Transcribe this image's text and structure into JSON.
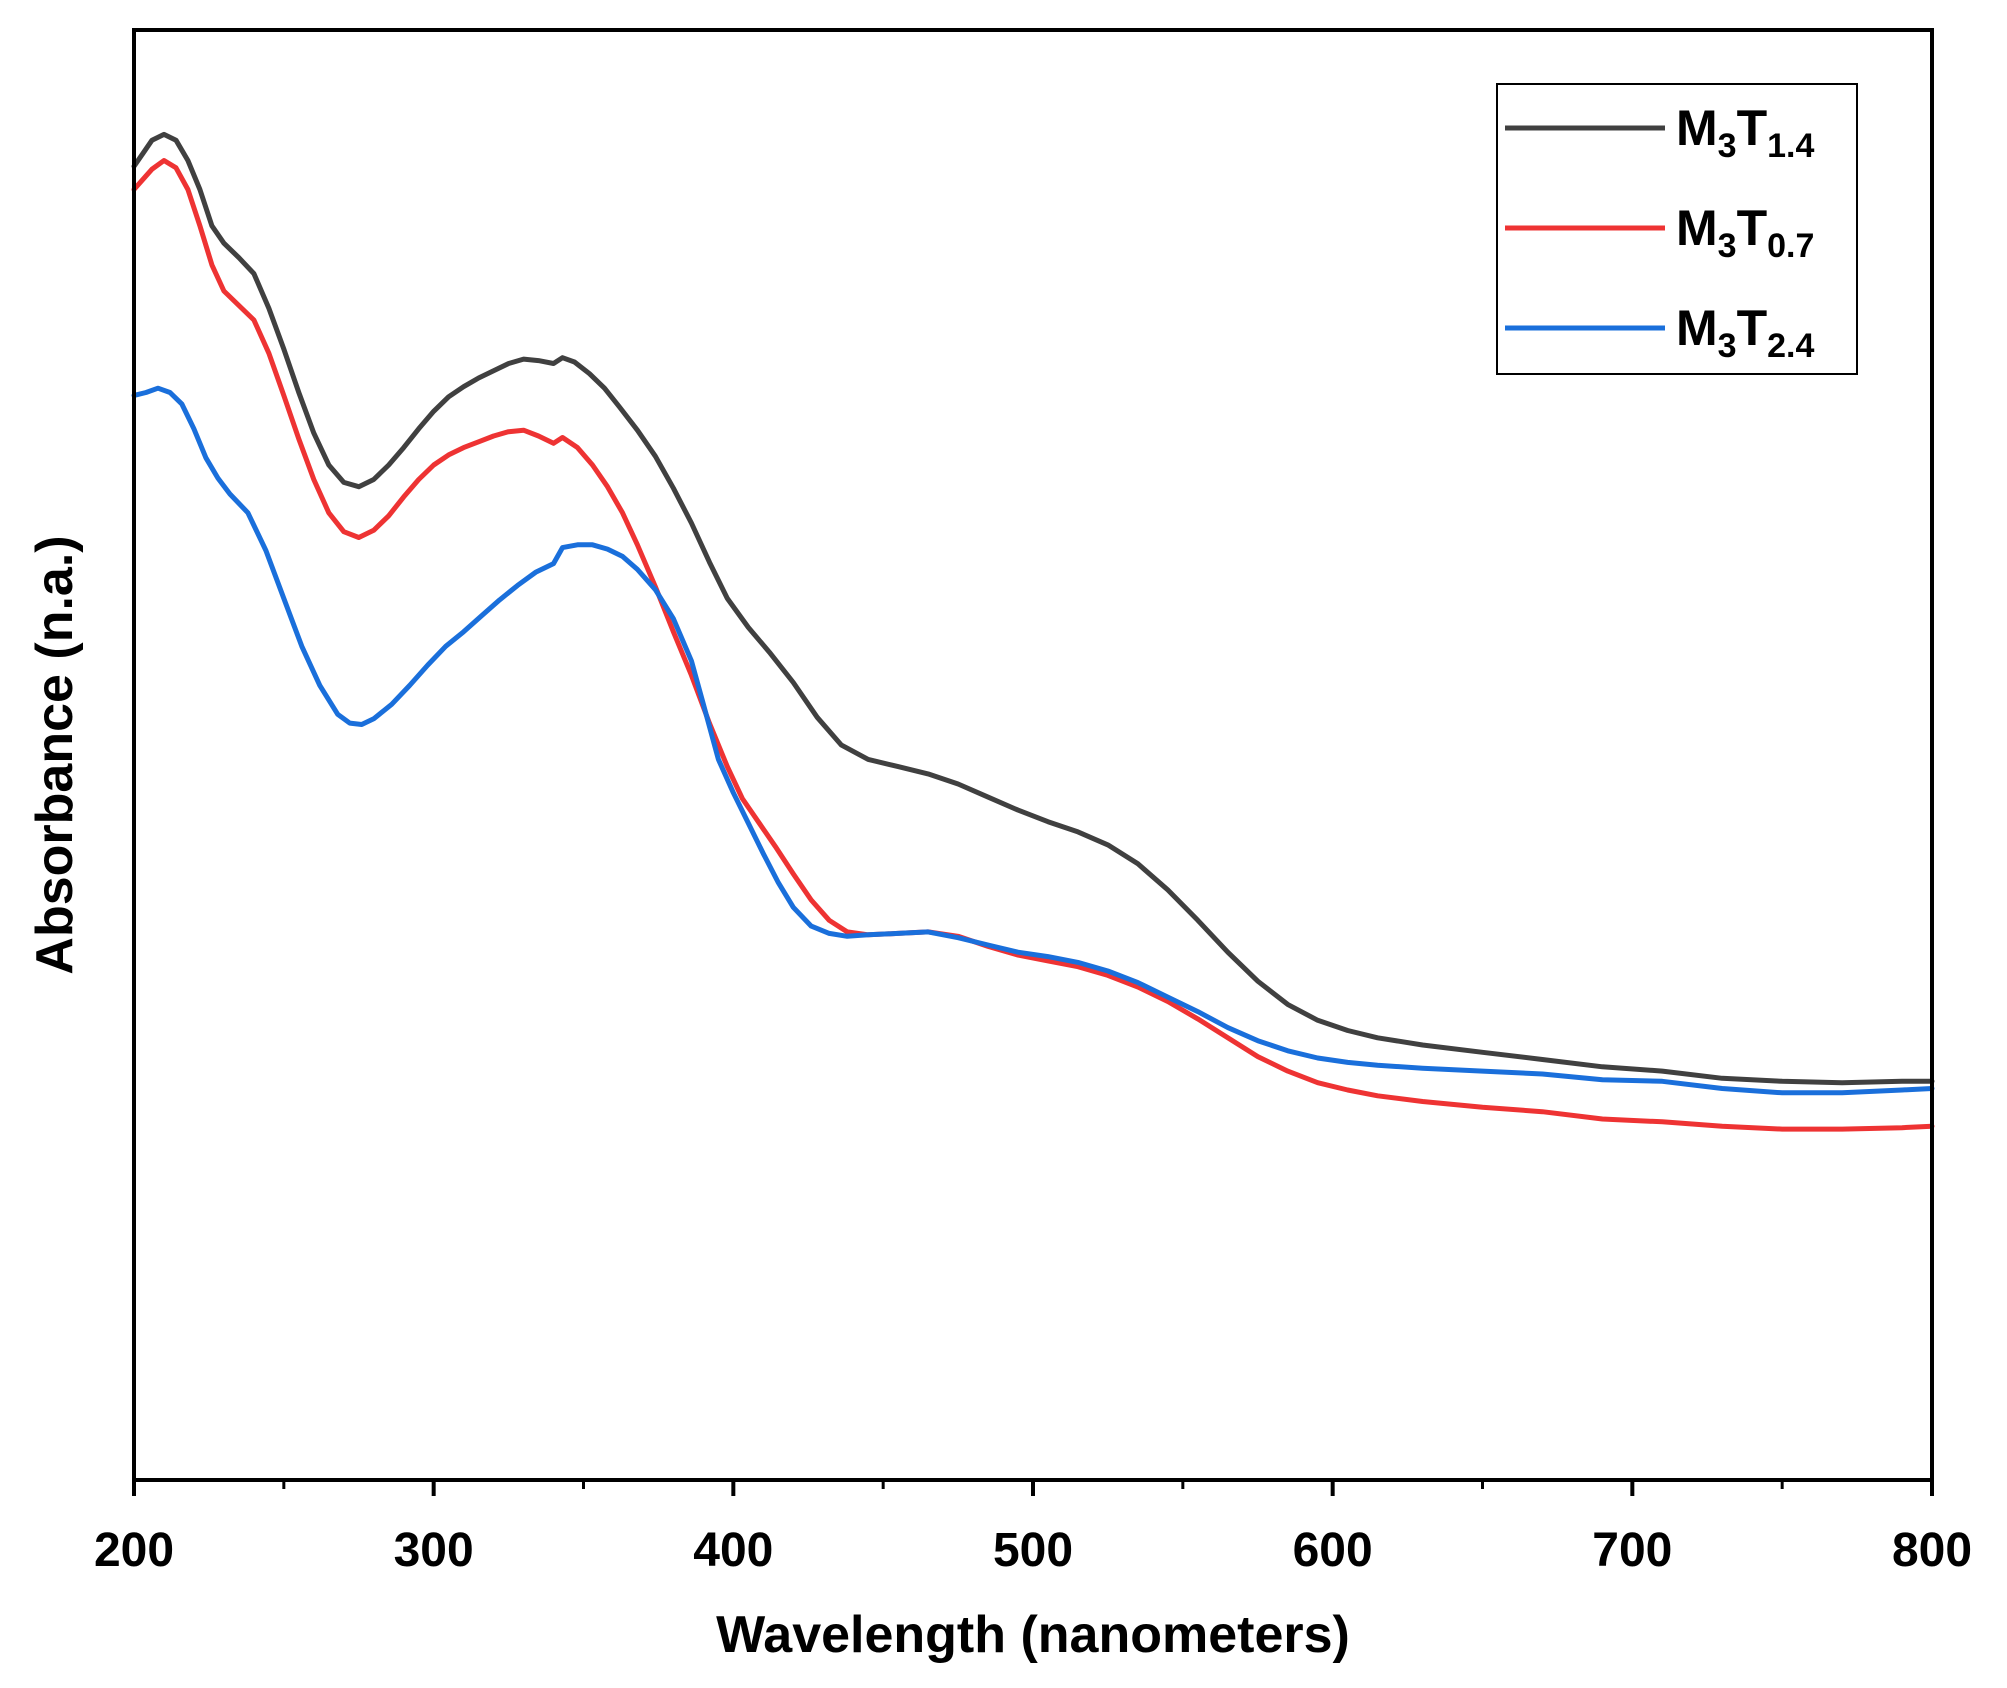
{
  "chart_data": {
    "type": "line",
    "title": "",
    "xlabel": "Wavelength (nanometers)",
    "ylabel": "Absorbance (n.a.)",
    "xlim": [
      200,
      800
    ],
    "ylim": [
      0,
      1.0
    ],
    "x_ticks": [
      200,
      300,
      400,
      500,
      600,
      700,
      800
    ],
    "grid": false,
    "legend_position": "top-right",
    "series": [
      {
        "name": "M3T1.4",
        "label_base": "M",
        "label_sub1": "3",
        "label_mid": "T",
        "label_sub2": "1.4",
        "color": "#404040",
        "points": [
          [
            200,
            0.906
          ],
          [
            203,
            0.915
          ],
          [
            206,
            0.924
          ],
          [
            210,
            0.928
          ],
          [
            214,
            0.924
          ],
          [
            218,
            0.91
          ],
          [
            222,
            0.89
          ],
          [
            226,
            0.865
          ],
          [
            230,
            0.853
          ],
          [
            235,
            0.843
          ],
          [
            240,
            0.832
          ],
          [
            245,
            0.808
          ],
          [
            250,
            0.78
          ],
          [
            255,
            0.75
          ],
          [
            260,
            0.722
          ],
          [
            265,
            0.7
          ],
          [
            270,
            0.688
          ],
          [
            275,
            0.685
          ],
          [
            280,
            0.69
          ],
          [
            285,
            0.7
          ],
          [
            290,
            0.712
          ],
          [
            295,
            0.725
          ],
          [
            300,
            0.737
          ],
          [
            305,
            0.747
          ],
          [
            310,
            0.754
          ],
          [
            315,
            0.76
          ],
          [
            320,
            0.765
          ],
          [
            325,
            0.77
          ],
          [
            330,
            0.773
          ],
          [
            335,
            0.772
          ],
          [
            340,
            0.77
          ],
          [
            343,
            0.774
          ],
          [
            347,
            0.771
          ],
          [
            352,
            0.763
          ],
          [
            357,
            0.753
          ],
          [
            362,
            0.74
          ],
          [
            368,
            0.724
          ],
          [
            374,
            0.706
          ],
          [
            380,
            0.684
          ],
          [
            386,
            0.66
          ],
          [
            392,
            0.633
          ],
          [
            398,
            0.608
          ],
          [
            405,
            0.588
          ],
          [
            412,
            0.571
          ],
          [
            420,
            0.55
          ],
          [
            428,
            0.526
          ],
          [
            436,
            0.507
          ],
          [
            445,
            0.497
          ],
          [
            455,
            0.492
          ],
          [
            465,
            0.487
          ],
          [
            475,
            0.48
          ],
          [
            485,
            0.471
          ],
          [
            495,
            0.462
          ],
          [
            505,
            0.454
          ],
          [
            515,
            0.447
          ],
          [
            525,
            0.438
          ],
          [
            535,
            0.425
          ],
          [
            545,
            0.407
          ],
          [
            555,
            0.386
          ],
          [
            565,
            0.364
          ],
          [
            575,
            0.344
          ],
          [
            585,
            0.328
          ],
          [
            595,
            0.317
          ],
          [
            605,
            0.31
          ],
          [
            615,
            0.305
          ],
          [
            630,
            0.3
          ],
          [
            650,
            0.295
          ],
          [
            670,
            0.29
          ],
          [
            690,
            0.285
          ],
          [
            710,
            0.282
          ],
          [
            730,
            0.277
          ],
          [
            750,
            0.275
          ],
          [
            770,
            0.274
          ],
          [
            790,
            0.275
          ],
          [
            800,
            0.275
          ]
        ]
      },
      {
        "name": "M3T0.7",
        "label_base": "M",
        "label_sub1": "3",
        "label_mid": "T",
        "label_sub2": "0.7",
        "color": "#ee3333",
        "points": [
          [
            200,
            0.89
          ],
          [
            203,
            0.897
          ],
          [
            206,
            0.904
          ],
          [
            210,
            0.91
          ],
          [
            214,
            0.905
          ],
          [
            218,
            0.89
          ],
          [
            222,
            0.865
          ],
          [
            226,
            0.838
          ],
          [
            230,
            0.82
          ],
          [
            235,
            0.81
          ],
          [
            240,
            0.8
          ],
          [
            245,
            0.777
          ],
          [
            250,
            0.748
          ],
          [
            255,
            0.718
          ],
          [
            260,
            0.69
          ],
          [
            265,
            0.667
          ],
          [
            270,
            0.654
          ],
          [
            275,
            0.65
          ],
          [
            280,
            0.655
          ],
          [
            285,
            0.665
          ],
          [
            290,
            0.678
          ],
          [
            295,
            0.69
          ],
          [
            300,
            0.7
          ],
          [
            305,
            0.707
          ],
          [
            310,
            0.712
          ],
          [
            315,
            0.716
          ],
          [
            320,
            0.72
          ],
          [
            325,
            0.723
          ],
          [
            330,
            0.724
          ],
          [
            335,
            0.72
          ],
          [
            340,
            0.715
          ],
          [
            343,
            0.719
          ],
          [
            348,
            0.712
          ],
          [
            353,
            0.7
          ],
          [
            358,
            0.685
          ],
          [
            363,
            0.667
          ],
          [
            368,
            0.645
          ],
          [
            374,
            0.616
          ],
          [
            380,
            0.585
          ],
          [
            386,
            0.555
          ],
          [
            392,
            0.522
          ],
          [
            398,
            0.492
          ],
          [
            403,
            0.47
          ],
          [
            408,
            0.455
          ],
          [
            414,
            0.437
          ],
          [
            420,
            0.418
          ],
          [
            426,
            0.4
          ],
          [
            432,
            0.386
          ],
          [
            438,
            0.378
          ],
          [
            445,
            0.376
          ],
          [
            455,
            0.377
          ],
          [
            465,
            0.378
          ],
          [
            475,
            0.375
          ],
          [
            485,
            0.368
          ],
          [
            495,
            0.362
          ],
          [
            505,
            0.358
          ],
          [
            515,
            0.354
          ],
          [
            525,
            0.348
          ],
          [
            535,
            0.34
          ],
          [
            545,
            0.33
          ],
          [
            555,
            0.318
          ],
          [
            565,
            0.305
          ],
          [
            575,
            0.292
          ],
          [
            585,
            0.282
          ],
          [
            595,
            0.274
          ],
          [
            605,
            0.269
          ],
          [
            615,
            0.265
          ],
          [
            630,
            0.261
          ],
          [
            650,
            0.257
          ],
          [
            670,
            0.254
          ],
          [
            690,
            0.249
          ],
          [
            710,
            0.247
          ],
          [
            730,
            0.244
          ],
          [
            750,
            0.242
          ],
          [
            770,
            0.242
          ],
          [
            790,
            0.243
          ],
          [
            800,
            0.244
          ]
        ]
      },
      {
        "name": "M3T2.4",
        "label_base": "M",
        "label_sub1": "3",
        "label_mid": "T",
        "label_sub2": "2.4",
        "color": "#1a6fdb",
        "points": [
          [
            200,
            0.748
          ],
          [
            204,
            0.75
          ],
          [
            208,
            0.753
          ],
          [
            212,
            0.75
          ],
          [
            216,
            0.742
          ],
          [
            220,
            0.725
          ],
          [
            224,
            0.705
          ],
          [
            228,
            0.691
          ],
          [
            232,
            0.68
          ],
          [
            238,
            0.667
          ],
          [
            244,
            0.641
          ],
          [
            250,
            0.608
          ],
          [
            256,
            0.575
          ],
          [
            262,
            0.548
          ],
          [
            268,
            0.528
          ],
          [
            272,
            0.522
          ],
          [
            276,
            0.521
          ],
          [
            280,
            0.525
          ],
          [
            286,
            0.535
          ],
          [
            292,
            0.548
          ],
          [
            298,
            0.562
          ],
          [
            304,
            0.575
          ],
          [
            310,
            0.585
          ],
          [
            316,
            0.596
          ],
          [
            322,
            0.607
          ],
          [
            328,
            0.617
          ],
          [
            334,
            0.626
          ],
          [
            340,
            0.632
          ],
          [
            343,
            0.643
          ],
          [
            348,
            0.645
          ],
          [
            353,
            0.645
          ],
          [
            358,
            0.642
          ],
          [
            363,
            0.637
          ],
          [
            368,
            0.628
          ],
          [
            374,
            0.614
          ],
          [
            380,
            0.594
          ],
          [
            386,
            0.565
          ],
          [
            390,
            0.535
          ],
          [
            395,
            0.497
          ],
          [
            400,
            0.474
          ],
          [
            405,
            0.453
          ],
          [
            410,
            0.432
          ],
          [
            415,
            0.412
          ],
          [
            420,
            0.395
          ],
          [
            426,
            0.382
          ],
          [
            432,
            0.377
          ],
          [
            438,
            0.375
          ],
          [
            445,
            0.376
          ],
          [
            455,
            0.377
          ],
          [
            465,
            0.378
          ],
          [
            475,
            0.374
          ],
          [
            485,
            0.369
          ],
          [
            495,
            0.364
          ],
          [
            505,
            0.361
          ],
          [
            515,
            0.357
          ],
          [
            525,
            0.351
          ],
          [
            535,
            0.343
          ],
          [
            545,
            0.333
          ],
          [
            555,
            0.323
          ],
          [
            565,
            0.312
          ],
          [
            575,
            0.303
          ],
          [
            585,
            0.296
          ],
          [
            595,
            0.291
          ],
          [
            605,
            0.288
          ],
          [
            615,
            0.286
          ],
          [
            630,
            0.284
          ],
          [
            650,
            0.282
          ],
          [
            670,
            0.28
          ],
          [
            690,
            0.276
          ],
          [
            710,
            0.275
          ],
          [
            730,
            0.27
          ],
          [
            750,
            0.267
          ],
          [
            770,
            0.267
          ],
          [
            790,
            0.269
          ],
          [
            800,
            0.27
          ]
        ]
      }
    ]
  }
}
